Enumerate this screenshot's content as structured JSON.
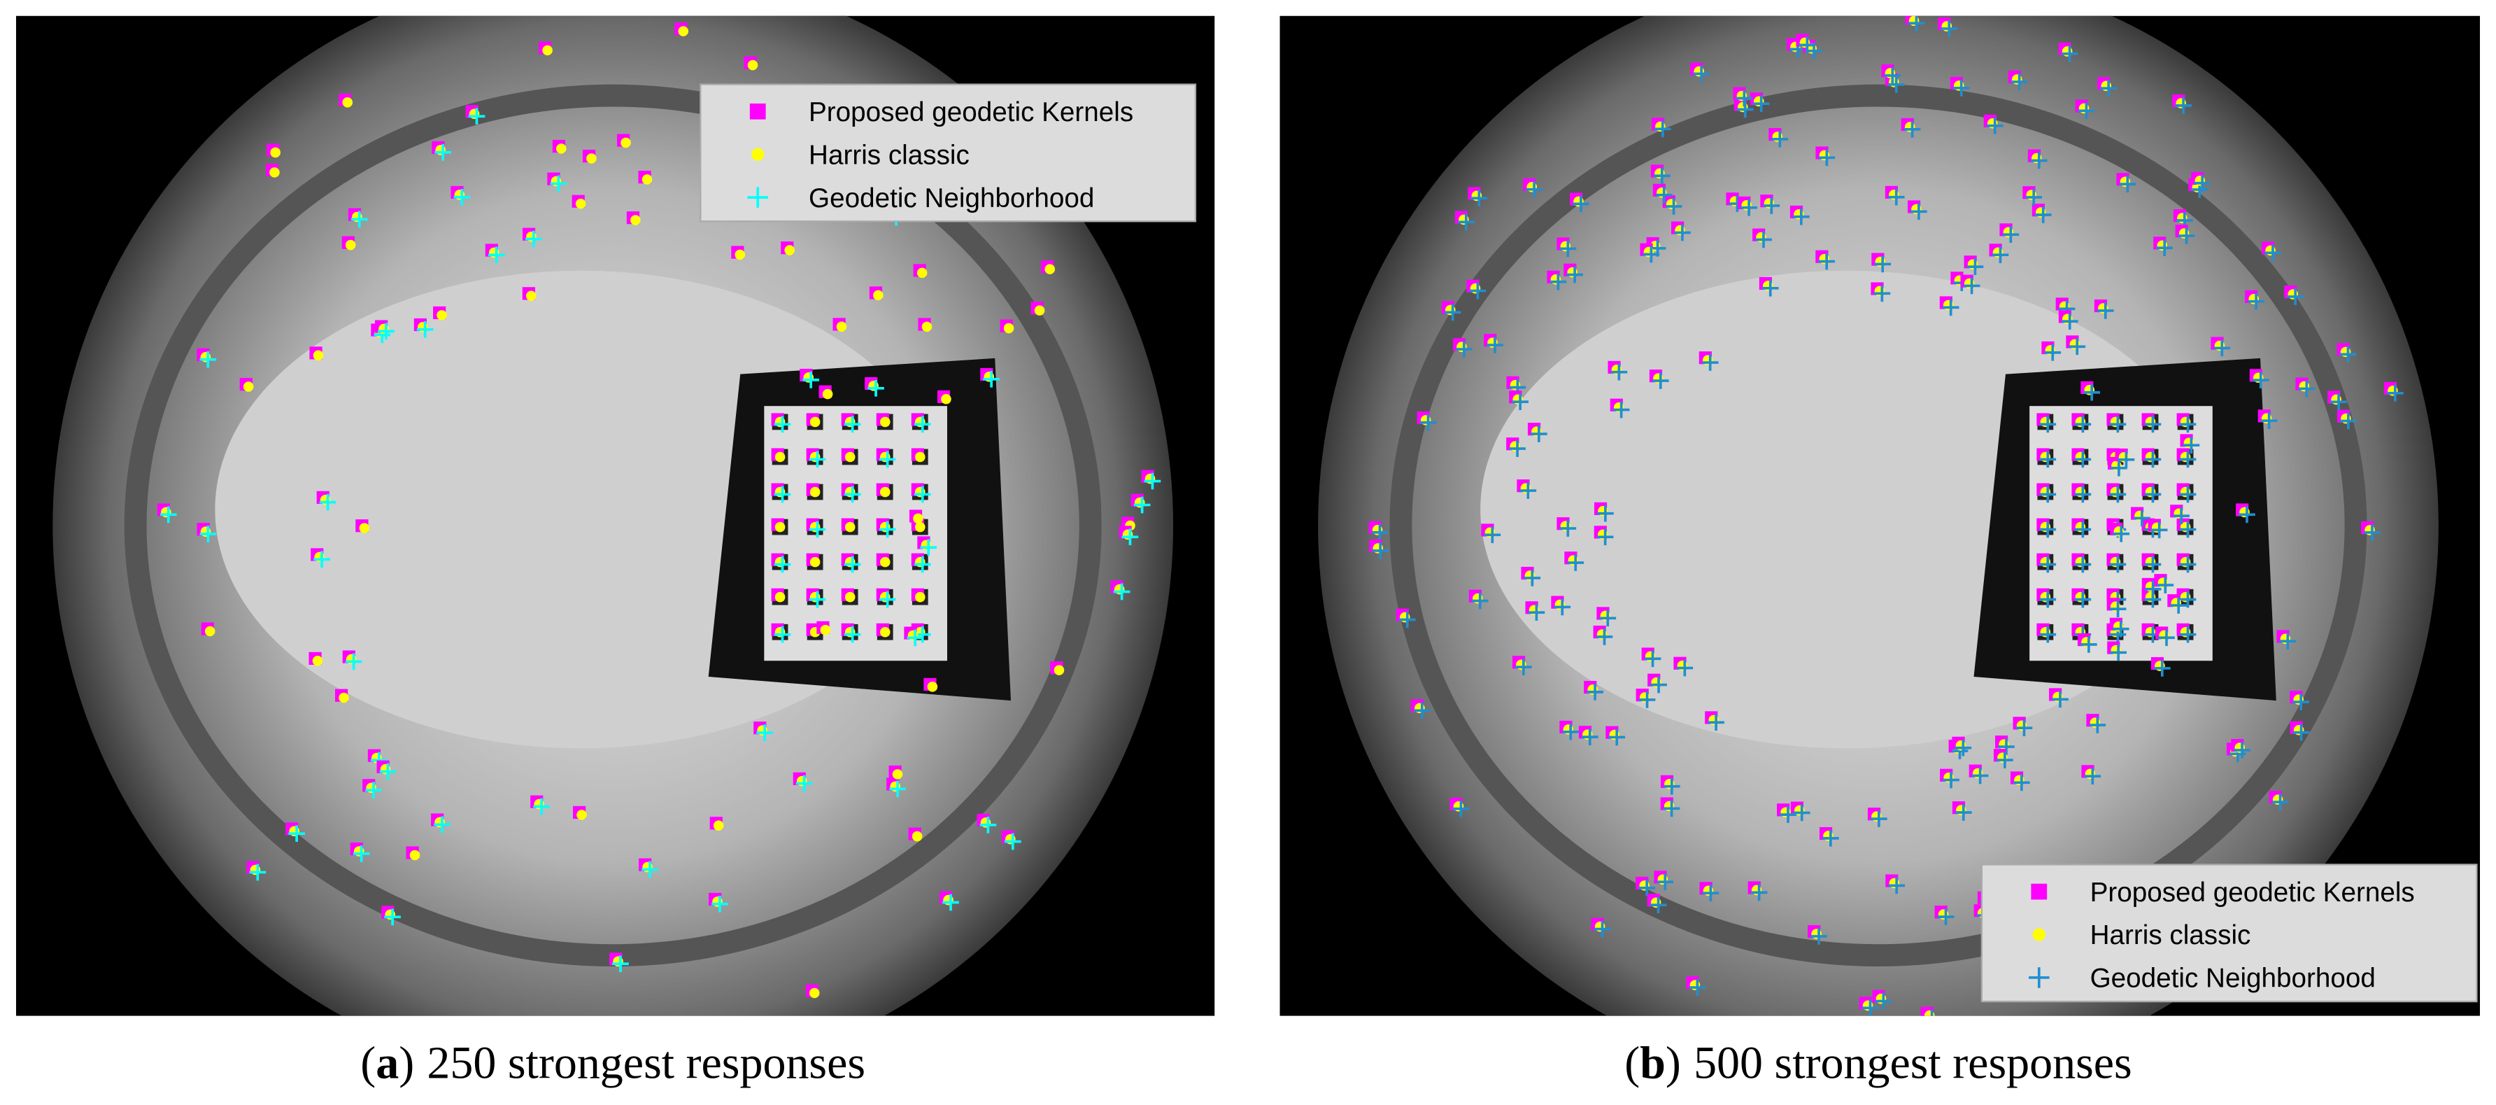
{
  "panels": [
    {
      "caption": {
        "open": "(",
        "label": "a",
        "close": ")",
        "text": "250 strongest responses"
      },
      "legend": [
        {
          "text": "Proposed geodetic Kernels",
          "marker": "square",
          "color": "#ff00ff"
        },
        {
          "text": "Harris classic",
          "marker": "dot",
          "color": "#ffff00"
        },
        {
          "text": "Geodetic Neighborhood",
          "marker": "plus",
          "color": "#00ffff"
        }
      ]
    },
    {
      "caption": {
        "open": "(",
        "label": "b",
        "close": ")",
        "text": "500 strongest responses"
      },
      "legend": [
        {
          "text": "Proposed geodetic Kernels",
          "marker": "square",
          "color": "#ff00ff"
        },
        {
          "text": "Harris classic",
          "marker": "dot",
          "color": "#ffff00"
        },
        {
          "text": "Geodetic Neighborhood",
          "marker": "plus",
          "color": "#1f8fd0"
        }
      ]
    }
  ]
}
